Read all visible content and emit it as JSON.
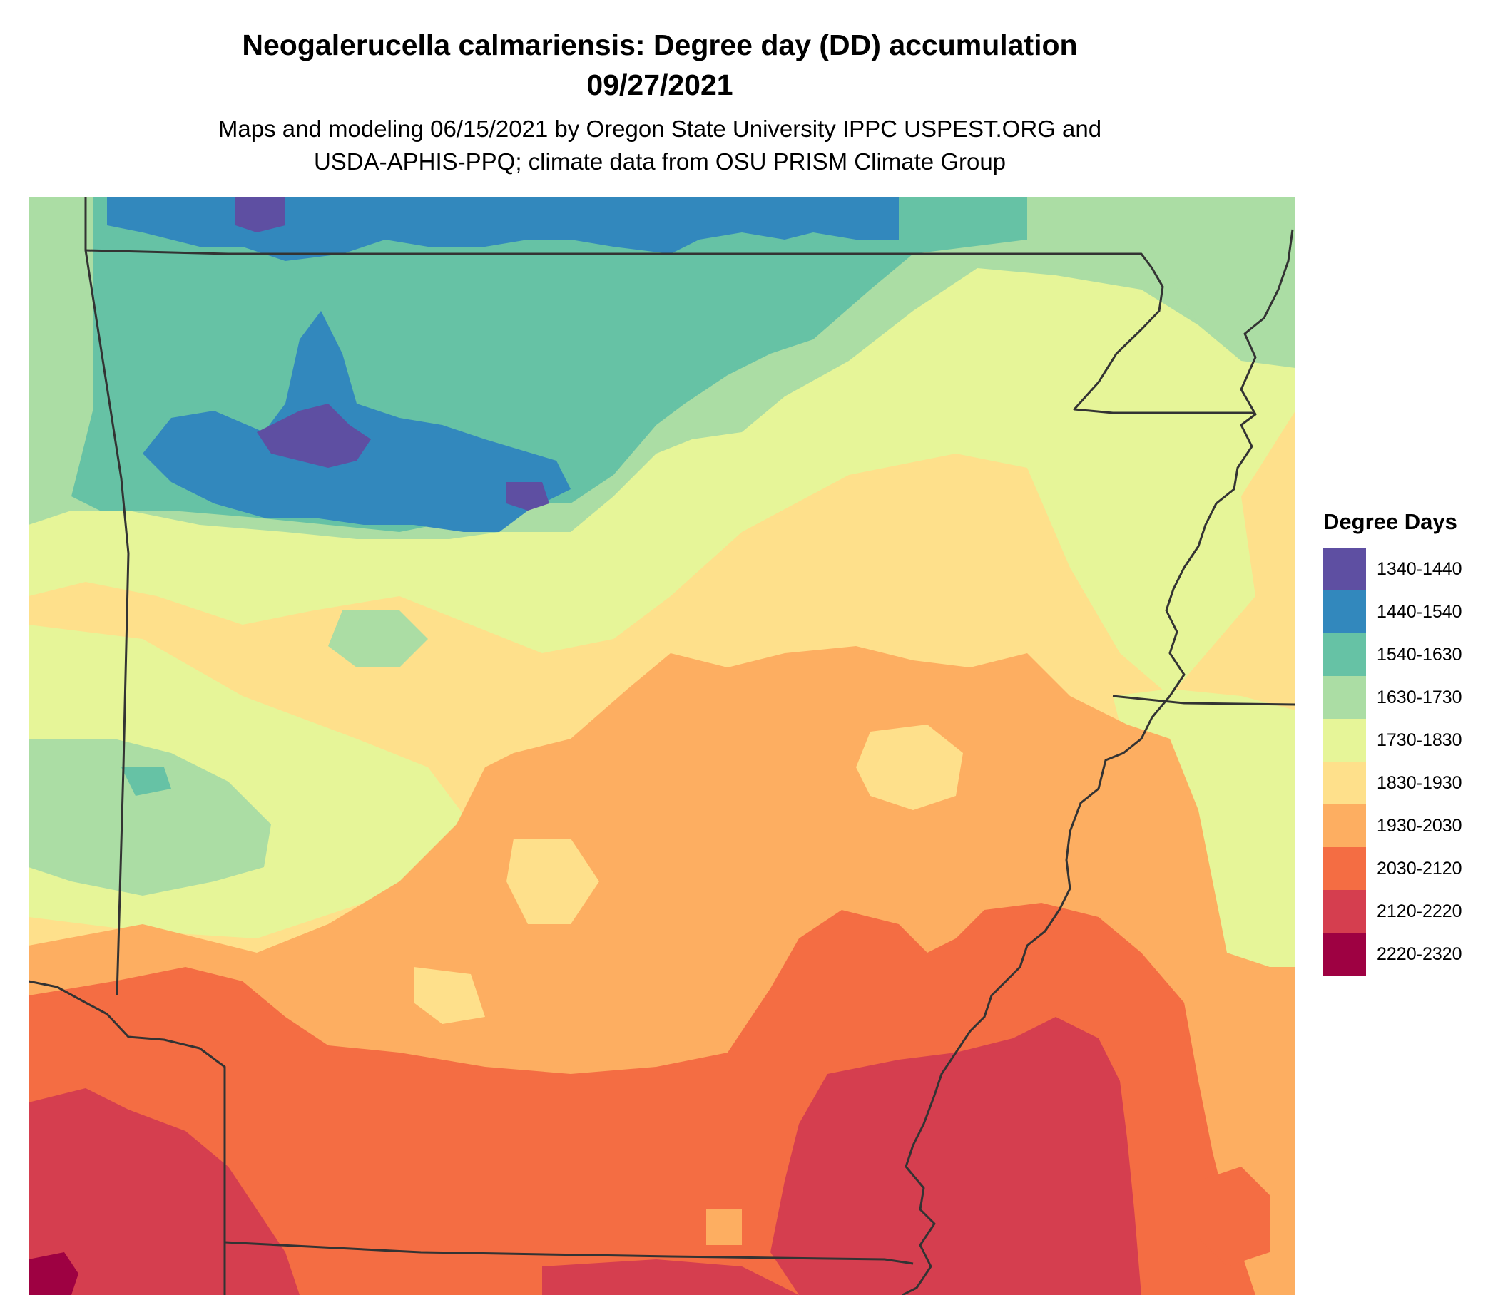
{
  "title_line1": "Neogalerucella calmariensis: Degree day (DD) accumulation",
  "title_line2": "09/27/2021",
  "subtitle_line1": "Maps and modeling 06/15/2021 by Oregon State University IPPC USPEST.ORG and",
  "subtitle_line2": "USDA-APHIS-PPQ; climate data from OSU PRISM Climate Group",
  "legend": {
    "title": "Degree Days",
    "items": [
      {
        "label": "1340-1440",
        "color": "#5e4fa2"
      },
      {
        "label": "1440-1540",
        "color": "#3288bd"
      },
      {
        "label": "1540-1630",
        "color": "#66c2a5"
      },
      {
        "label": "1630-1730",
        "color": "#abdda4"
      },
      {
        "label": "1730-1830",
        "color": "#e6f598"
      },
      {
        "label": "1830-1930",
        "color": "#fee08b"
      },
      {
        "label": "1930-2030",
        "color": "#fdae61"
      },
      {
        "label": "2030-2120",
        "color": "#f46d43"
      },
      {
        "label": "2120-2220",
        "color": "#d53e4f"
      },
      {
        "label": "2220-2320",
        "color": "#9e0142"
      }
    ]
  },
  "map": {
    "type": "raster heat map",
    "region": "Arkansas and surrounding area",
    "boundaries": "state borders drawn as dark lines",
    "gradient": "cooler (fewer degree days) in the north, warmer (more degree days) in the south"
  }
}
